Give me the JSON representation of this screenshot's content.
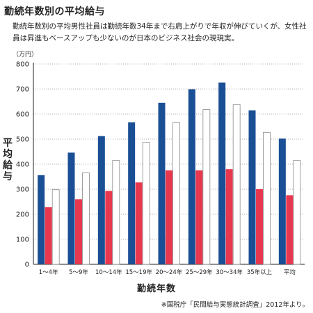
{
  "header": {
    "title": "勤続年数別の平均給与",
    "subtitle": "勤続年数別の平均男性社員は勤続年数34年まで右肩上がりで年収が伸びていくが、女性社員は昇進もベースアップも少ないのが日本のビジネス社会の現現実。"
  },
  "footer": {
    "note": "※国税庁「民間給与実態統計調査」2012年より。"
  },
  "colors": {
    "male": "#1a4f95",
    "female": "#e8384f",
    "total_stroke": "#888888",
    "total_fill": "#ffffff",
    "grid": "#999999"
  },
  "chart_data": {
    "type": "bar",
    "title": "勤続年数別の平均給与",
    "unit_label": "（万円）",
    "ylabel": "平均給与",
    "xlabel": "勤続年数",
    "ylim": [
      0,
      800
    ],
    "yticks": [
      "0",
      "100",
      "200",
      "300",
      "400",
      "500",
      "600",
      "700",
      "800"
    ],
    "grid": true,
    "categories": [
      "1～4年",
      "5～9年",
      "10～14年",
      "15～19年",
      "20～24年",
      "25～29年",
      "30～34年",
      "35年以上",
      "平均"
    ],
    "series": [
      {
        "values": [
          356,
          446,
          512,
          567,
          645,
          699,
          726,
          615,
          502
        ]
      },
      {
        "values": [
          228,
          260,
          293,
          327,
          375,
          375,
          380,
          300,
          276
        ]
      },
      {
        "values": [
          298,
          365,
          415,
          487,
          566,
          618,
          638,
          527,
          415
        ]
      }
    ]
  }
}
